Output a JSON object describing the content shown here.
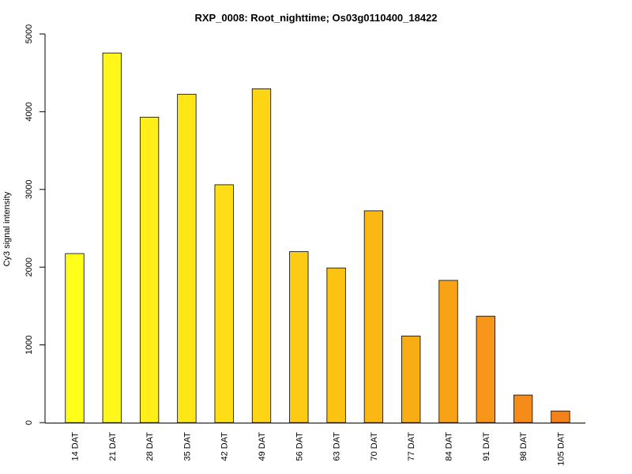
{
  "chart_data": {
    "type": "bar",
    "title": "RXP_0008: Root_nighttime; Os03g0110400_18422",
    "xlabel": "",
    "ylabel": "Cy3 signal intensity",
    "ylim": [
      0,
      5000
    ],
    "yticks": [
      0,
      1000,
      2000,
      3000,
      4000,
      5000
    ],
    "grid": false,
    "categories": [
      "14 DAT",
      "21 DAT",
      "28 DAT",
      "35 DAT",
      "42 DAT",
      "49 DAT",
      "56 DAT",
      "63 DAT",
      "70 DAT",
      "77 DAT",
      "84 DAT",
      "91 DAT",
      "98 DAT",
      "105 DAT"
    ],
    "values": [
      2175,
      4755,
      3930,
      4225,
      3060,
      4295,
      2200,
      1990,
      2725,
      1115,
      1830,
      1370,
      355,
      150
    ],
    "colors": [
      "#FFFF1A",
      "#FFF61A",
      "#FFEE18",
      "#FFE717",
      "#FFDE16",
      "#FED514",
      "#FDCB14",
      "#FCC312",
      "#FBB714",
      "#F9AD14",
      "#F8A215",
      "#F79618",
      "#F58B19",
      "#F58219"
    ],
    "bar_border_color": "#000000"
  }
}
